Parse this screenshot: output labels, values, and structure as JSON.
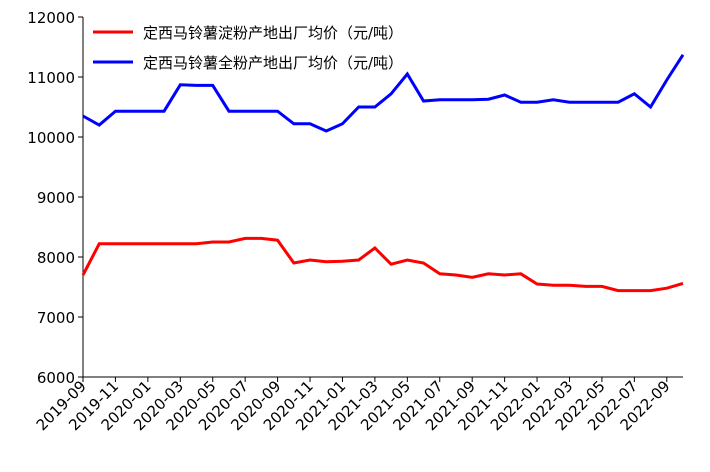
{
  "chart_data": {
    "type": "line",
    "x": [
      "2019-09",
      "2019-10",
      "2019-11",
      "2019-12",
      "2020-01",
      "2020-02",
      "2020-03",
      "2020-04",
      "2020-05",
      "2020-06",
      "2020-07",
      "2020-08",
      "2020-09",
      "2020-10",
      "2020-11",
      "2020-12",
      "2021-01",
      "2021-02",
      "2021-03",
      "2021-04",
      "2021-05",
      "2021-06",
      "2021-07",
      "2021-08",
      "2021-09",
      "2021-10",
      "2021-11",
      "2021-12",
      "2022-01",
      "2022-02",
      "2022-03",
      "2022-04",
      "2022-05",
      "2022-06",
      "2022-07",
      "2022-08",
      "2022-09",
      "2022-10"
    ],
    "series": [
      {
        "name": "定西马铃薯淀粉产地出厂均价（元/吨）",
        "color": "#ff0000",
        "values": [
          7700,
          8220,
          8220,
          8220,
          8220,
          8220,
          8220,
          8220,
          8250,
          8250,
          8310,
          8310,
          8280,
          7900,
          7950,
          7920,
          7930,
          7950,
          8150,
          7880,
          7950,
          7900,
          7720,
          7700,
          7660,
          7720,
          7700,
          7720,
          7550,
          7530,
          7530,
          7510,
          7510,
          7440,
          7440,
          7440,
          7480,
          7560
        ]
      },
      {
        "name": "定西马铃薯全粉产地出厂均价（元/吨）",
        "color": "#0000ff",
        "values": [
          10350,
          10200,
          10430,
          10430,
          10430,
          10430,
          10870,
          10860,
          10860,
          10430,
          10430,
          10430,
          10430,
          10220,
          10220,
          10100,
          10220,
          10500,
          10500,
          10720,
          11050,
          10600,
          10620,
          10620,
          10620,
          10630,
          10700,
          10580,
          10580,
          10620,
          10580,
          10580,
          10580,
          10580,
          10720,
          10500,
          10950,
          11370
        ]
      }
    ],
    "xlim": [
      "2019-09",
      "2022-10"
    ],
    "xticks": [
      "2019-09",
      "2019-11",
      "2020-01",
      "2020-03",
      "2020-05",
      "2020-07",
      "2020-09",
      "2020-11",
      "2021-01",
      "2021-03",
      "2021-05",
      "2021-07",
      "2021-09",
      "2021-11",
      "2022-01",
      "2022-03",
      "2022-05",
      "2022-07",
      "2022-09"
    ],
    "ylim": [
      6000,
      12000
    ],
    "yticks": [
      6000,
      7000,
      8000,
      9000,
      10000,
      11000,
      12000
    ],
    "legend": "upper-left"
  }
}
